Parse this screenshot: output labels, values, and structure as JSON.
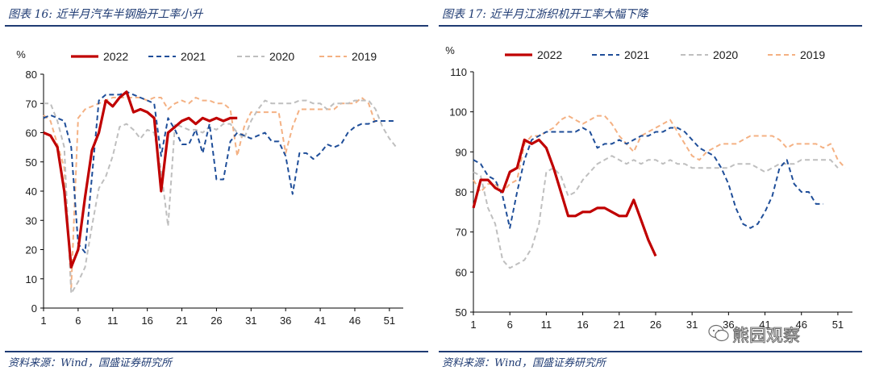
{
  "charts": [
    {
      "title": "图表 16:  近半月汽车半钢胎开工率小升",
      "source": "资料来源：Wind，国盛证券研究所",
      "chart_data": {
        "type": "line",
        "ylabel": "%",
        "ylim": [
          0,
          80
        ],
        "yticks": [
          0,
          10,
          20,
          30,
          40,
          50,
          60,
          70,
          80
        ],
        "xlim": [
          1,
          53
        ],
        "xticks": [
          1,
          6,
          11,
          16,
          21,
          26,
          31,
          36,
          41,
          46,
          51
        ],
        "legend_position": "top",
        "series": [
          {
            "name": "2022",
            "color": "#c00000",
            "dash": "solid",
            "values": [
              60,
              59,
              55,
              40,
              14,
              20,
              38,
              54,
              60,
              71,
              69,
              72,
              74,
              67,
              68,
              67,
              65,
              40,
              60,
              62,
              64,
              65,
              63,
              65,
              64,
              65,
              64,
              65,
              65
            ]
          },
          {
            "name": "2021",
            "color": "#1f4e99",
            "dash": "dashed",
            "values": [
              65,
              66,
              65,
              64,
              55,
              22,
              19,
              45,
              71,
              73,
              73,
              73,
              74,
              73,
              72,
              71,
              70,
              52,
              65,
              61,
              56,
              56,
              61,
              53,
              63,
              44,
              44,
              57,
              60,
              59,
              58,
              59,
              60,
              57,
              57,
              52,
              39,
              53,
              53,
              51,
              53,
              56,
              55,
              56,
              60,
              62,
              63,
              63,
              64,
              64,
              64,
              64
            ]
          },
          {
            "name": "2020",
            "color": "#bfbfbf",
            "dash": "dashed",
            "values": [
              70,
              70,
              64,
              55,
              5,
              9,
              14,
              28,
              41,
              45,
              52,
              62,
              63,
              61,
              58,
              61,
              60,
              47,
              28,
              63,
              62,
              61,
              61,
              60,
              62,
              61,
              63,
              63,
              60,
              58,
              64,
              68,
              71,
              70,
              70,
              70,
              70,
              71,
              71,
              70,
              70,
              68,
              70,
              70,
              70,
              71,
              71,
              71,
              68,
              62,
              58,
              55
            ]
          },
          {
            "name": "2019",
            "color": "#f4b183",
            "dash": "dashed",
            "values": [
              66,
              64,
              56,
              48,
              7,
              65,
              68,
              69,
              70,
              71,
              72,
              72,
              72,
              72,
              72,
              71,
              72,
              72,
              68,
              70,
              71,
              70,
              72,
              71,
              71,
              70,
              70,
              68,
              52,
              62,
              67,
              67,
              67,
              67,
              67,
              53,
              62,
              68,
              68,
              68,
              68,
              68,
              68,
              70,
              70,
              70,
              72,
              70,
              63
            ]
          }
        ]
      }
    },
    {
      "title": "图表 17:  近半月江浙织机开工率大幅下降",
      "source": "资料来源：Wind，国盛证券研究所",
      "chart_data": {
        "type": "line",
        "ylabel": "%",
        "ylim": [
          50,
          110
        ],
        "yticks": [
          50,
          60,
          70,
          80,
          90,
          100,
          110
        ],
        "xlim": [
          1,
          53
        ],
        "xticks": [
          1,
          6,
          11,
          16,
          21,
          26,
          31,
          36,
          41,
          46,
          51
        ],
        "legend_position": "top",
        "series": [
          {
            "name": "2022",
            "color": "#c00000",
            "dash": "solid",
            "values": [
              76,
              83,
              83,
              81,
              80,
              85,
              86,
              93,
              92,
              93,
              91,
              86,
              80,
              74,
              74,
              75,
              75,
              76,
              76,
              75,
              74,
              74,
              78,
              73,
              68,
              64
            ]
          },
          {
            "name": "2021",
            "color": "#1f4e99",
            "dash": "dashed",
            "values": [
              88,
              87,
              84,
              83,
              79,
              71,
              80,
              88,
              93,
              94,
              95,
              95,
              95,
              95,
              95,
              96,
              95,
              91,
              92,
              92,
              93,
              92,
              93,
              94,
              94,
              95,
              95,
              96,
              96,
              95,
              93,
              91,
              90,
              89,
              86,
              82,
              76,
              72,
              71,
              72,
              75,
              79,
              86,
              88,
              82,
              80,
              80,
              77,
              77
            ]
          },
          {
            "name": "2020",
            "color": "#bfbfbf",
            "dash": "dashed",
            "values": [
              85,
              84,
              76,
              72,
              63,
              61,
              62,
              63,
              66,
              72,
              85,
              86,
              84,
              79,
              80,
              83,
              85,
              87,
              88,
              89,
              88,
              87,
              88,
              87,
              88,
              88,
              87,
              88,
              87,
              87,
              86,
              86,
              86,
              86,
              86,
              86,
              87,
              87,
              87,
              86,
              85,
              86,
              87,
              87,
              87,
              88,
              88,
              88,
              88,
              88,
              86
            ]
          },
          {
            "name": "2019",
            "color": "#f4b183",
            "dash": "dashed",
            "values": [
              83,
              80,
              82,
              82,
              80,
              82,
              83,
              92,
              94,
              94,
              95,
              96,
              98,
              99,
              98,
              97,
              98,
              99,
              99,
              97,
              94,
              92,
              90,
              94,
              95,
              96,
              97,
              98,
              95,
              92,
              89,
              88,
              90,
              91,
              92,
              92,
              92,
              93,
              94,
              94,
              94,
              94,
              93,
              91,
              92,
              92,
              92,
              92,
              91,
              92,
              88,
              86
            ]
          }
        ]
      }
    }
  ],
  "watermark": "熊园观察",
  "watermark_icon": "wechat-icon"
}
